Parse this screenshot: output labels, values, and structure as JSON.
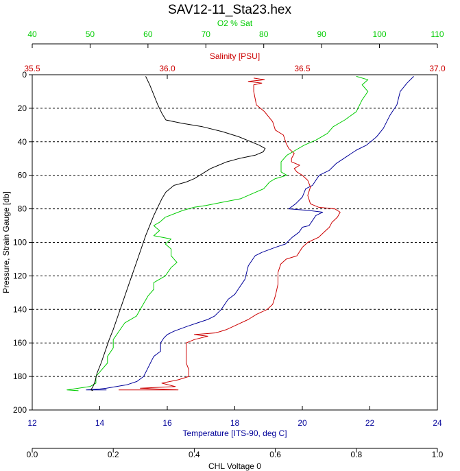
{
  "chart_data": {
    "type": "line",
    "title": "SAV12-11_Sta23.hex",
    "grid": true,
    "y_axis": {
      "label": "Pressure, Strain Gauge [db]",
      "range": [
        0,
        200
      ],
      "inverted": true,
      "ticks": [
        "0",
        "20",
        "40",
        "60",
        "80",
        "100",
        "120",
        "140",
        "160",
        "180",
        "200"
      ]
    },
    "x_axes": [
      {
        "id": "o2",
        "label": "O2 % Sat",
        "position": "top",
        "range": [
          40,
          110
        ],
        "color": "#00cc00",
        "ticks": [
          "40",
          "50",
          "60",
          "70",
          "80",
          "90",
          "100",
          "110"
        ]
      },
      {
        "id": "sal",
        "label": "Salinity [PSU]",
        "position": "top",
        "range": [
          35.5,
          37.0
        ],
        "color": "#cc0000",
        "ticks": [
          "35.5",
          "36.0",
          "36.5",
          "37.0"
        ]
      },
      {
        "id": "temp",
        "label": "Temperature [ITS-90, deg C]",
        "position": "bottom",
        "range": [
          12,
          24
        ],
        "color": "#000099",
        "ticks": [
          "12",
          "14",
          "16",
          "18",
          "20",
          "22",
          "24"
        ]
      },
      {
        "id": "chl",
        "label": "CHL Voltage 0",
        "position": "bottom",
        "range": [
          0.0,
          1.0
        ],
        "color": "#000000",
        "ticks": [
          "0.0",
          "0.2",
          "0.4",
          "0.6",
          "0.8",
          "1.0"
        ]
      }
    ],
    "series": [
      {
        "axis": "temp",
        "color": "#000099",
        "points": [
          [
            23.3,
            1
          ],
          [
            23.1,
            5
          ],
          [
            22.9,
            10
          ],
          [
            22.8,
            18
          ],
          [
            22.6,
            24
          ],
          [
            22.4,
            32
          ],
          [
            22.2,
            37
          ],
          [
            21.9,
            42
          ],
          [
            21.6,
            45
          ],
          [
            21.3,
            49
          ],
          [
            21.0,
            53
          ],
          [
            20.8,
            57
          ],
          [
            20.5,
            60
          ],
          [
            20.3,
            66
          ],
          [
            20.1,
            68
          ],
          [
            20.0,
            73
          ],
          [
            19.8,
            77
          ],
          [
            19.6,
            80
          ],
          [
            20.2,
            81
          ],
          [
            20.6,
            82
          ],
          [
            20.4,
            84
          ],
          [
            20.3,
            87
          ],
          [
            20.2,
            90
          ],
          [
            20.0,
            91
          ],
          [
            19.9,
            94
          ],
          [
            19.7,
            97
          ],
          [
            19.5,
            101
          ],
          [
            19.2,
            103
          ],
          [
            18.8,
            106
          ],
          [
            18.6,
            108
          ],
          [
            18.4,
            114
          ],
          [
            18.3,
            122
          ],
          [
            18.1,
            128
          ],
          [
            18.0,
            131
          ],
          [
            17.8,
            134
          ],
          [
            17.6,
            140
          ],
          [
            17.4,
            144
          ],
          [
            17.2,
            146
          ],
          [
            16.9,
            148
          ],
          [
            16.6,
            150
          ],
          [
            16.2,
            153
          ],
          [
            16.0,
            155
          ],
          [
            15.9,
            157
          ],
          [
            15.8,
            160
          ],
          [
            15.8,
            165
          ],
          [
            15.6,
            168
          ],
          [
            15.5,
            172
          ],
          [
            15.4,
            176
          ],
          [
            15.3,
            180
          ],
          [
            15.1,
            183
          ],
          [
            14.8,
            185
          ],
          [
            14.5,
            186
          ],
          [
            14.2,
            187
          ],
          [
            14.0,
            187.5
          ],
          [
            13.6,
            188
          ],
          [
            14.2,
            188
          ]
        ]
      },
      {
        "axis": "sal",
        "color": "#cc0000",
        "points": [
          [
            36.32,
            2
          ],
          [
            36.36,
            3
          ],
          [
            36.3,
            4
          ],
          [
            36.35,
            5
          ],
          [
            36.32,
            6
          ],
          [
            36.32,
            10
          ],
          [
            36.33,
            18
          ],
          [
            36.36,
            22
          ],
          [
            36.39,
            28
          ],
          [
            36.4,
            33
          ],
          [
            36.43,
            36
          ],
          [
            36.44,
            41
          ],
          [
            36.45,
            44
          ],
          [
            36.47,
            47
          ],
          [
            36.46,
            50
          ],
          [
            36.46,
            52
          ],
          [
            36.49,
            54
          ],
          [
            36.47,
            56
          ],
          [
            36.48,
            58
          ],
          [
            36.5,
            60
          ],
          [
            36.52,
            63
          ],
          [
            36.53,
            67
          ],
          [
            36.52,
            72
          ],
          [
            36.53,
            77
          ],
          [
            36.56,
            79
          ],
          [
            36.62,
            80
          ],
          [
            36.64,
            82
          ],
          [
            36.63,
            85
          ],
          [
            36.61,
            88
          ],
          [
            36.6,
            91
          ],
          [
            36.58,
            94
          ],
          [
            36.56,
            97
          ],
          [
            36.52,
            100
          ],
          [
            36.5,
            103
          ],
          [
            36.48,
            108
          ],
          [
            36.44,
            110
          ],
          [
            36.42,
            113
          ],
          [
            36.41,
            118
          ],
          [
            36.41,
            125
          ],
          [
            36.4,
            132
          ],
          [
            36.39,
            137
          ],
          [
            36.37,
            140
          ],
          [
            36.33,
            143
          ],
          [
            36.3,
            146
          ],
          [
            36.26,
            149
          ],
          [
            36.22,
            152
          ],
          [
            36.18,
            154
          ],
          [
            36.1,
            155
          ],
          [
            36.15,
            156
          ],
          [
            36.1,
            158
          ],
          [
            36.07,
            160
          ],
          [
            36.07,
            166
          ],
          [
            36.07,
            172
          ],
          [
            36.08,
            176
          ],
          [
            36.08,
            180
          ],
          [
            36.04,
            182
          ],
          [
            35.98,
            184
          ],
          [
            36.03,
            186
          ],
          [
            35.9,
            187
          ],
          [
            36.04,
            188
          ],
          [
            35.82,
            188
          ]
        ]
      },
      {
        "axis": "o2",
        "color": "#00cc00",
        "points": [
          [
            96,
            1
          ],
          [
            98,
            3
          ],
          [
            97,
            6
          ],
          [
            98,
            10
          ],
          [
            97,
            15
          ],
          [
            96,
            22
          ],
          [
            94,
            27
          ],
          [
            92,
            31
          ],
          [
            91,
            35
          ],
          [
            89,
            39
          ],
          [
            87,
            42
          ],
          [
            85,
            46
          ],
          [
            84,
            48
          ],
          [
            83,
            52
          ],
          [
            83,
            56
          ],
          [
            83,
            58
          ],
          [
            84,
            60
          ],
          [
            82,
            62
          ],
          [
            81,
            64
          ],
          [
            80,
            68
          ],
          [
            78,
            71
          ],
          [
            76,
            74
          ],
          [
            73,
            76
          ],
          [
            70,
            78
          ],
          [
            68,
            79
          ],
          [
            66,
            81
          ],
          [
            63,
            85
          ],
          [
            62,
            88
          ],
          [
            61,
            90
          ],
          [
            62,
            93
          ],
          [
            61,
            96
          ],
          [
            64,
            98
          ],
          [
            63,
            101
          ],
          [
            64,
            104
          ],
          [
            64,
            108
          ],
          [
            65,
            112
          ],
          [
            64,
            115
          ],
          [
            63,
            120
          ],
          [
            61,
            124
          ],
          [
            61,
            128
          ],
          [
            60,
            132
          ],
          [
            59,
            138
          ],
          [
            58,
            144
          ],
          [
            56,
            148
          ],
          [
            55,
            153
          ],
          [
            54,
            158
          ],
          [
            54,
            163
          ],
          [
            53,
            168
          ],
          [
            53,
            172
          ],
          [
            52,
            176
          ],
          [
            51,
            180
          ],
          [
            51,
            184
          ],
          [
            50,
            186
          ],
          [
            48,
            187
          ],
          [
            46,
            188
          ],
          [
            48,
            188.5
          ]
        ]
      },
      {
        "axis": "chl",
        "color": "#000000",
        "points": [
          [
            0.28,
            1
          ],
          [
            0.29,
            6
          ],
          [
            0.3,
            12
          ],
          [
            0.31,
            18
          ],
          [
            0.32,
            23
          ],
          [
            0.33,
            27
          ],
          [
            0.37,
            29
          ],
          [
            0.42,
            31
          ],
          [
            0.47,
            34
          ],
          [
            0.51,
            37
          ],
          [
            0.54,
            40
          ],
          [
            0.56,
            42
          ],
          [
            0.575,
            44
          ],
          [
            0.57,
            46
          ],
          [
            0.55,
            48
          ],
          [
            0.51,
            50
          ],
          [
            0.48,
            52
          ],
          [
            0.46,
            54
          ],
          [
            0.44,
            56
          ],
          [
            0.42,
            59
          ],
          [
            0.4,
            62
          ],
          [
            0.38,
            64
          ],
          [
            0.35,
            66
          ],
          [
            0.33,
            70
          ],
          [
            0.32,
            74
          ],
          [
            0.31,
            79
          ],
          [
            0.3,
            84
          ],
          [
            0.29,
            90
          ],
          [
            0.28,
            96
          ],
          [
            0.27,
            103
          ],
          [
            0.26,
            110
          ],
          [
            0.25,
            117
          ],
          [
            0.24,
            124
          ],
          [
            0.23,
            131
          ],
          [
            0.22,
            138
          ],
          [
            0.21,
            145
          ],
          [
            0.2,
            152
          ],
          [
            0.19,
            158
          ],
          [
            0.18,
            165
          ],
          [
            0.17,
            172
          ],
          [
            0.16,
            178
          ],
          [
            0.155,
            183
          ],
          [
            0.15,
            186
          ],
          [
            0.145,
            188
          ],
          [
            0.15,
            188.5
          ]
        ]
      }
    ]
  }
}
